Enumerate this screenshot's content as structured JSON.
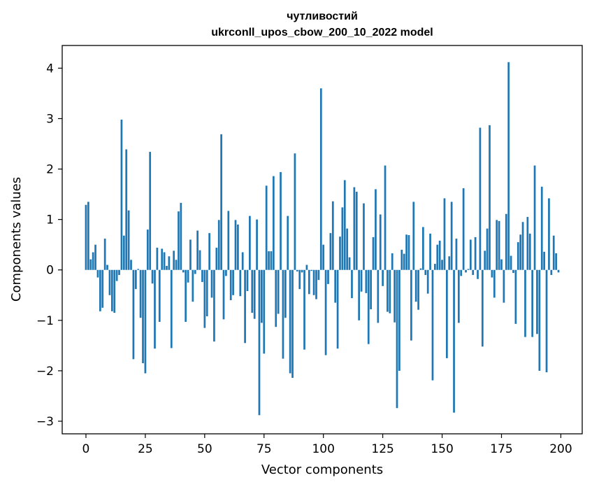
{
  "chart_data": {
    "type": "bar",
    "title_lines": [
      "чутливостий",
      "ukrconll_upos_cbow_200_10_2022 model"
    ],
    "xlabel": "Vector components",
    "ylabel": "Components values",
    "xlim": [
      -10,
      209
    ],
    "ylim": [
      -3.25,
      4.45
    ],
    "xticks": [
      0,
      25,
      50,
      75,
      100,
      125,
      150,
      175,
      200
    ],
    "yticks": [
      -3,
      -2,
      -1,
      0,
      1,
      2,
      3,
      4
    ],
    "ytick_labels": [
      "−3",
      "−2",
      "−1",
      "0",
      "1",
      "2",
      "3",
      "4"
    ],
    "grid": false,
    "bar_color": "#1f77b4",
    "x": [
      0,
      1,
      2,
      3,
      4,
      5,
      6,
      7,
      8,
      9,
      10,
      11,
      12,
      13,
      14,
      15,
      16,
      17,
      18,
      19,
      20,
      21,
      22,
      23,
      24,
      25,
      26,
      27,
      28,
      29,
      30,
      31,
      32,
      33,
      34,
      35,
      36,
      37,
      38,
      39,
      40,
      41,
      42,
      43,
      44,
      45,
      46,
      47,
      48,
      49,
      50,
      51,
      52,
      53,
      54,
      55,
      56,
      57,
      58,
      59,
      60,
      61,
      62,
      63,
      64,
      65,
      66,
      67,
      68,
      69,
      70,
      71,
      72,
      73,
      74,
      75,
      76,
      77,
      78,
      79,
      80,
      81,
      82,
      83,
      84,
      85,
      86,
      87,
      88,
      89,
      90,
      91,
      92,
      93,
      94,
      95,
      96,
      97,
      98,
      99,
      100,
      101,
      102,
      103,
      104,
      105,
      106,
      107,
      108,
      109,
      110,
      111,
      112,
      113,
      114,
      115,
      116,
      117,
      118,
      119,
      120,
      121,
      122,
      123,
      124,
      125,
      126,
      127,
      128,
      129,
      130,
      131,
      132,
      133,
      134,
      135,
      136,
      137,
      138,
      139,
      140,
      141,
      142,
      143,
      144,
      145,
      146,
      147,
      148,
      149,
      150,
      151,
      152,
      153,
      154,
      155,
      156,
      157,
      158,
      159,
      160,
      161,
      162,
      163,
      164,
      165,
      166,
      167,
      168,
      169,
      170,
      171,
      172,
      173,
      174,
      175,
      176,
      177,
      178,
      179,
      180,
      181,
      182,
      183,
      184,
      185,
      186,
      187,
      188,
      189,
      190,
      191,
      192,
      193,
      194,
      195,
      196,
      197,
      198,
      199
    ],
    "values": [
      1.29,
      1.35,
      0.21,
      0.35,
      0.5,
      -0.15,
      -0.82,
      -0.75,
      0.62,
      0.1,
      -0.5,
      -0.82,
      -0.85,
      -0.22,
      -0.1,
      2.98,
      0.68,
      2.39,
      1.18,
      0.2,
      -1.77,
      -0.38,
      0.02,
      -0.95,
      -1.85,
      -2.05,
      0.8,
      2.34,
      -0.27,
      -1.56,
      0.44,
      -1.03,
      0.42,
      0.35,
      0.08,
      0.27,
      -1.55,
      0.38,
      0.2,
      1.16,
      1.33,
      -0.05,
      -1.03,
      -0.25,
      0.6,
      -0.63,
      -0.08,
      0.78,
      0.39,
      -0.24,
      -1.15,
      -0.92,
      0.73,
      -0.55,
      -1.42,
      0.44,
      0.99,
      2.69,
      -0.98,
      -0.12,
      1.17,
      -0.6,
      -0.5,
      0.99,
      0.9,
      -0.52,
      0.35,
      -1.45,
      -0.42,
      1.07,
      -0.85,
      -0.97,
      1.0,
      -2.88,
      -1.05,
      -1.66,
      1.67,
      0.37,
      0.37,
      1.86,
      -1.13,
      -0.87,
      1.94,
      -1.76,
      -0.95,
      1.07,
      -2.05,
      -2.14,
      2.31,
      -0.03,
      -0.38,
      -0.05,
      -1.58,
      0.1,
      -0.48,
      -0.02,
      -0.5,
      -0.58,
      -0.2,
      3.6,
      0.5,
      -1.69,
      -0.28,
      0.73,
      1.36,
      -0.65,
      -1.56,
      0.66,
      1.24,
      1.78,
      0.82,
      0.25,
      -0.56,
      1.64,
      1.55,
      -1.0,
      -0.43,
      1.32,
      -0.46,
      -1.47,
      -0.78,
      0.65,
      1.6,
      -1.05,
      1.1,
      -0.32,
      2.07,
      -0.83,
      -0.86,
      0.33,
      -1.04,
      -2.74,
      -2.0,
      0.4,
      0.32,
      0.7,
      0.69,
      -1.4,
      1.35,
      -0.63,
      -0.79,
      0.03,
      0.85,
      -0.1,
      -0.47,
      0.72,
      -2.19,
      0.12,
      0.5,
      0.58,
      0.2,
      1.42,
      -1.75,
      0.27,
      1.35,
      -2.83,
      0.62,
      -1.05,
      -0.12,
      1.62,
      -0.05,
      0.02,
      0.6,
      -0.1,
      0.65,
      -0.18,
      2.82,
      -1.52,
      0.38,
      0.82,
      2.87,
      -0.15,
      -0.55,
      0.99,
      0.97,
      0.21,
      -0.65,
      1.11,
      4.12,
      0.28,
      -0.06,
      -1.07,
      0.55,
      0.7,
      0.95,
      -1.33,
      1.05,
      0.72,
      -1.33,
      2.07,
      -1.27,
      -2.0,
      1.65,
      0.36,
      -2.03,
      1.42,
      -0.1,
      0.68,
      0.33,
      -0.05
    ]
  }
}
